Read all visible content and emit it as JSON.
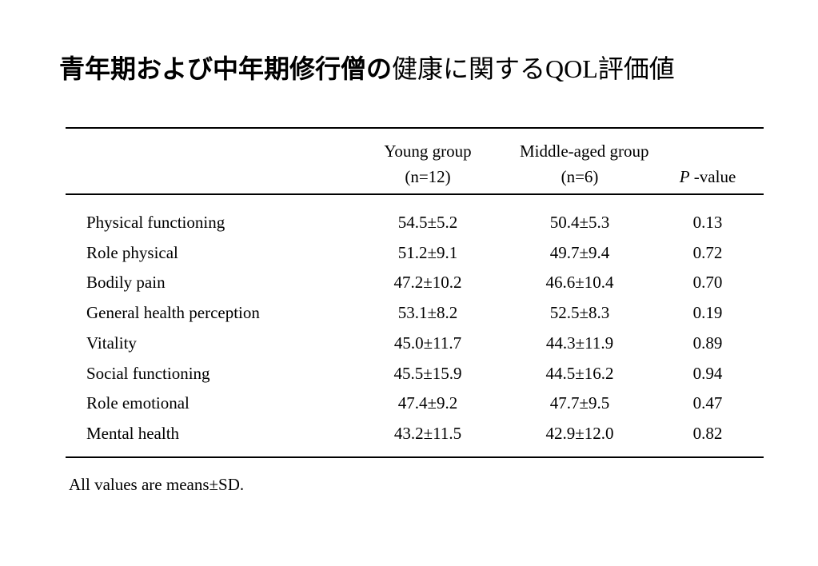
{
  "title": {
    "part1": "青年期および中年期修行僧の",
    "part2": "健康に関する",
    "part3": "QOL",
    "part4": "評価値"
  },
  "table": {
    "headers": {
      "young": {
        "line1": "Young group",
        "line2": "(n=12)"
      },
      "middle": {
        "line1": "Middle-aged group",
        "line2": "(n=6)"
      },
      "pvalue": {
        "italic": "P",
        "rest": " -value"
      }
    },
    "rows": [
      {
        "label": "Physical functioning",
        "young": "54.5±5.2",
        "middle": "50.4±5.3",
        "p": "0.13"
      },
      {
        "label": "Role physical",
        "young": "51.2±9.1",
        "middle": "49.7±9.4",
        "p": "0.72"
      },
      {
        "label": "Bodily pain",
        "young": "47.2±10.2",
        "middle": "46.6±10.4",
        "p": "0.70"
      },
      {
        "label": "General health perception",
        "young": "53.1±8.2",
        "middle": "52.5±8.3",
        "p": "0.19"
      },
      {
        "label": "Vitality",
        "young": "45.0±11.7",
        "middle": "44.3±11.9",
        "p": "0.89"
      },
      {
        "label": "Social functioning",
        "young": "45.5±15.9",
        "middle": "44.5±16.2",
        "p": "0.94"
      },
      {
        "label": "Role emotional",
        "young": "47.4±9.2",
        "middle": "47.7±9.5",
        "p": "0.47"
      },
      {
        "label": "Mental health",
        "young": "43.2±11.5",
        "middle": "42.9±12.0",
        "p": "0.82"
      }
    ]
  },
  "footnote": "All values are means±SD."
}
